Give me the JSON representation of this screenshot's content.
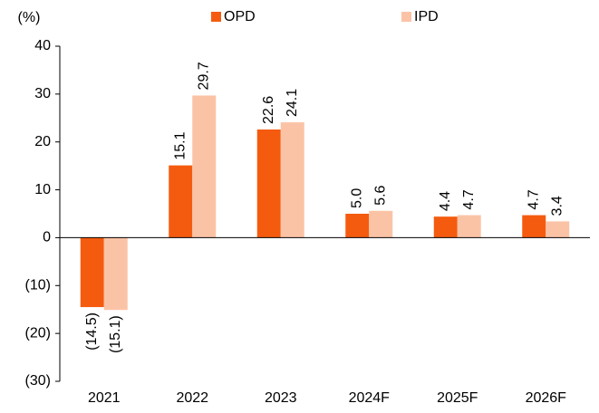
{
  "chart_data": {
    "type": "bar",
    "y_label": "(%)",
    "categories": [
      "2021",
      "2022",
      "2023",
      "2024F",
      "2025F",
      "2026F"
    ],
    "series": [
      {
        "name": "OPD",
        "color": "#f45b0f",
        "values": [
          -14.5,
          15.1,
          22.6,
          5.0,
          4.4,
          4.7
        ],
        "value_labels": [
          "(14.5)",
          "15.1",
          "22.6",
          "5.0",
          "4.4",
          "4.7"
        ]
      },
      {
        "name": "IPD",
        "color": "#fbc3a6",
        "values": [
          -15.1,
          29.7,
          24.1,
          5.6,
          4.7,
          3.4
        ],
        "value_labels": [
          "(15.1)",
          "29.7",
          "24.1",
          "5.6",
          "4.7",
          "3.4"
        ]
      }
    ],
    "ylim": [
      -30,
      40
    ],
    "yticks": [
      {
        "value": -30,
        "label": "(30)"
      },
      {
        "value": -20,
        "label": "(20)"
      },
      {
        "value": -10,
        "label": "(10)"
      },
      0,
      10,
      20,
      30,
      40
    ],
    "legend": "top"
  }
}
